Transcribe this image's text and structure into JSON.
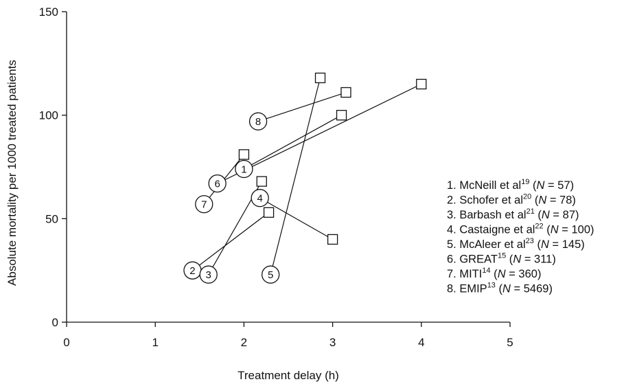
{
  "chart_data": {
    "type": "scatter",
    "title": "",
    "xlabel": "Treatment delay (h)",
    "ylabel": "Absolute mortality per 1000 treated patients",
    "xlim": [
      0,
      5
    ],
    "ylim": [
      0,
      150
    ],
    "x_ticks": [
      "0",
      "1",
      "2",
      "3",
      "4",
      "5"
    ],
    "y_ticks": [
      "0",
      "50",
      "100",
      "150"
    ],
    "grid": false,
    "legend_placement": "right",
    "marker_note": "circle = early (numbered trial), square = later",
    "series": [
      {
        "id": "1",
        "name": "McNeill et al",
        "ref": "19",
        "n_text": "57",
        "points": [
          {
            "x": 2.0,
            "y": 74
          },
          {
            "x": 3.1,
            "y": 100
          }
        ]
      },
      {
        "id": "2",
        "name": "Schofer et al",
        "ref": "20",
        "n_text": "78",
        "points": [
          {
            "x": 1.42,
            "y": 25
          },
          {
            "x": 2.28,
            "y": 53
          }
        ]
      },
      {
        "id": "3",
        "name": "Barbash et al",
        "ref": "21",
        "n_text": "87",
        "points": [
          {
            "x": 1.6,
            "y": 23
          },
          {
            "x": 2.2,
            "y": 68
          }
        ]
      },
      {
        "id": "4",
        "name": "Castaigne et al",
        "ref": "22",
        "n_text": "100",
        "points": [
          {
            "x": 2.18,
            "y": 60
          },
          {
            "x": 3.0,
            "y": 40
          }
        ]
      },
      {
        "id": "5",
        "name": "McAleer et al",
        "ref": "23",
        "n_text": "145",
        "points": [
          {
            "x": 2.3,
            "y": 23
          },
          {
            "x": 2.86,
            "y": 118
          }
        ]
      },
      {
        "id": "6",
        "name": "GREAT",
        "ref": "15",
        "n_text": "311",
        "points": [
          {
            "x": 1.7,
            "y": 67
          },
          {
            "x": 4.0,
            "y": 115
          }
        ]
      },
      {
        "id": "7",
        "name": "MITI",
        "ref": "14",
        "n_text": "360",
        "points": [
          {
            "x": 1.55,
            "y": 57
          },
          {
            "x": 2.0,
            "y": 81
          }
        ]
      },
      {
        "id": "8",
        "name": "EMIP",
        "ref": "13",
        "n_text": "5469",
        "points": [
          {
            "x": 2.16,
            "y": 97
          },
          {
            "x": 3.15,
            "y": 111
          }
        ]
      }
    ],
    "legend": {
      "n_italic": "N",
      "eq": " = ",
      "entries": [
        {
          "prefix": "1. McNeill et al",
          "sup": "19",
          "n": "57"
        },
        {
          "prefix": "2. Schofer et al",
          "sup": "20",
          "n": "78"
        },
        {
          "prefix": "3. Barbash et al",
          "sup": "21",
          "n": "87"
        },
        {
          "prefix": "4. Castaigne et al",
          "sup": "22",
          "n": "100"
        },
        {
          "prefix": "5. McAleer et al",
          "sup": "23",
          "n": "145"
        },
        {
          "prefix": "6. GREAT",
          "sup": "15",
          "n": "311"
        },
        {
          "prefix": "7. MITI",
          "sup": "14",
          "n": "360"
        },
        {
          "prefix": "8. EMIP",
          "sup": "13",
          "n": "5469"
        }
      ]
    }
  }
}
